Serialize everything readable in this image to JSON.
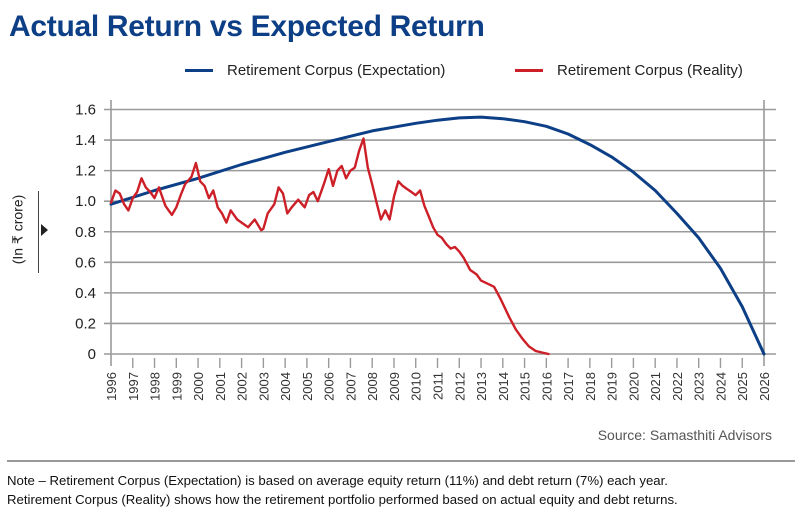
{
  "chart_data": {
    "type": "line",
    "title": "Actual Return vs Expected Return",
    "xlabel": "",
    "ylabel": "(In ₹ crore)",
    "xlim": [
      1996,
      2026
    ],
    "ylim": [
      0,
      1.6
    ],
    "grid": true,
    "legend_placement": "top-right",
    "y_ticks": [
      "0",
      "0.2",
      "0.4",
      "0.6",
      "0.8",
      "1.0",
      "1.2",
      "1.4",
      "1.6"
    ],
    "y_tick_values": [
      0,
      0.2,
      0.4,
      0.6,
      0.8,
      1.0,
      1.2,
      1.4,
      1.6
    ],
    "x_ticks": [
      "1996",
      "1997",
      "1998",
      "1999",
      "2000",
      "2001",
      "2002",
      "2003",
      "2004",
      "2005",
      "2006",
      "2007",
      "2008",
      "2009",
      "2010",
      "2011",
      "2012",
      "2013",
      "2014",
      "2015",
      "2016",
      "2017",
      "2018",
      "2019",
      "2020",
      "2021",
      "2022",
      "2023",
      "2024",
      "2025",
      "2026"
    ],
    "series": [
      {
        "name": "Retirement Corpus (Expectation)",
        "color": "#0d3f86",
        "x": [
          1996,
          1998,
          2000,
          2002,
          2004,
          2006,
          2008,
          2010,
          2011,
          2012,
          2013,
          2014,
          2015,
          2016,
          2017,
          2018,
          2019,
          2020,
          2021,
          2022,
          2023,
          2024,
          2025,
          2026
        ],
        "values": [
          0.98,
          1.07,
          1.15,
          1.24,
          1.32,
          1.39,
          1.46,
          1.51,
          1.53,
          1.545,
          1.55,
          1.54,
          1.52,
          1.49,
          1.44,
          1.37,
          1.29,
          1.19,
          1.07,
          0.92,
          0.76,
          0.56,
          0.31,
          0.0
        ]
      },
      {
        "name": "Retirement Corpus (Reality)",
        "color": "#cc1f27",
        "x": [
          1996.0,
          1996.2,
          1996.4,
          1996.6,
          1996.8,
          1997.0,
          1997.2,
          1997.4,
          1997.6,
          1997.8,
          1998.0,
          1998.2,
          1998.5,
          1998.8,
          1999.0,
          1999.2,
          1999.4,
          1999.7,
          1999.9,
          2000.1,
          2000.3,
          2000.5,
          2000.7,
          2000.9,
          2001.1,
          2001.3,
          2001.5,
          2001.8,
          2002.0,
          2002.3,
          2002.6,
          2002.9,
          2003.0,
          2003.2,
          2003.5,
          2003.7,
          2003.9,
          2004.1,
          2004.3,
          2004.6,
          2004.9,
          2005.1,
          2005.3,
          2005.5,
          2005.8,
          2006.0,
          2006.2,
          2006.4,
          2006.6,
          2006.8,
          2007.0,
          2007.2,
          2007.4,
          2007.6,
          2007.8,
          2008.0,
          2008.2,
          2008.4,
          2008.6,
          2008.8,
          2009.0,
          2009.2,
          2009.4,
          2009.6,
          2009.8,
          2010.0,
          2010.2,
          2010.4,
          2010.6,
          2010.8,
          2011.0,
          2011.2,
          2011.4,
          2011.6,
          2011.8,
          2012.0,
          2012.2,
          2012.5,
          2012.8,
          2013.0,
          2013.3,
          2013.6,
          2013.9,
          2014.1,
          2014.3,
          2014.6,
          2014.9,
          2015.2,
          2015.5,
          2015.8,
          2016.1
        ],
        "values": [
          0.99,
          1.07,
          1.05,
          0.98,
          0.94,
          1.02,
          1.06,
          1.15,
          1.09,
          1.06,
          1.02,
          1.09,
          0.97,
          0.91,
          0.96,
          1.04,
          1.11,
          1.16,
          1.25,
          1.13,
          1.1,
          1.02,
          1.07,
          0.96,
          0.92,
          0.86,
          0.94,
          0.88,
          0.86,
          0.83,
          0.88,
          0.81,
          0.82,
          0.92,
          0.98,
          1.09,
          1.05,
          0.92,
          0.96,
          1.01,
          0.96,
          1.04,
          1.06,
          1.0,
          1.12,
          1.21,
          1.1,
          1.2,
          1.23,
          1.15,
          1.2,
          1.22,
          1.33,
          1.41,
          1.22,
          1.11,
          0.99,
          0.88,
          0.94,
          0.88,
          1.03,
          1.13,
          1.1,
          1.08,
          1.06,
          1.04,
          1.07,
          0.97,
          0.9,
          0.83,
          0.78,
          0.76,
          0.72,
          0.69,
          0.7,
          0.67,
          0.63,
          0.55,
          0.52,
          0.48,
          0.46,
          0.44,
          0.36,
          0.3,
          0.24,
          0.16,
          0.1,
          0.05,
          0.02,
          0.01,
          0.0
        ]
      }
    ]
  },
  "legend": {
    "items": [
      {
        "label": "Retirement Corpus (Expectation)",
        "color": "#0d3f86"
      },
      {
        "label": "Retirement Corpus (Reality)",
        "color": "#cc1f27"
      }
    ]
  },
  "y_unit_label": "(In ₹ crore)",
  "source": "Source: Samasthiti Advisors",
  "note": {
    "line1": "Note – Retirement Corpus (Expectation) is based on average equity return (11%) and debt return (7%) each year.",
    "line2": "Retirement Corpus (Reality) shows how the retirement portfolio performed based on actual equity and debt returns."
  },
  "colors": {
    "title": "#0d3f86",
    "gridline": "#9a9a9a"
  }
}
